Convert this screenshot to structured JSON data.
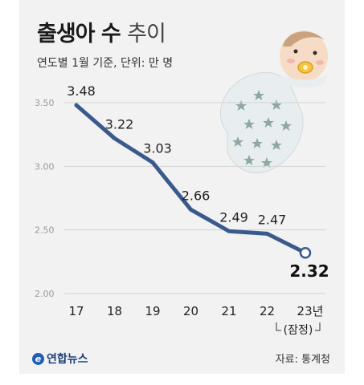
{
  "header": {
    "title_bold": "출생아 수",
    "title_light": "추이",
    "subtitle": "연도별 1월 기준, 단위: 만 명"
  },
  "footer": {
    "logo": "연합뉴스",
    "logo_mark": "e",
    "source": "자료: 통계청"
  },
  "colors": {
    "line": "#3b5a8c",
    "grid": "#d2d2d2",
    "background": "#f2f2f2"
  },
  "illustration": "swaddled-baby-with-pacifier",
  "chart_data": {
    "type": "line",
    "title": "출생아 수 추이",
    "categories": [
      "17",
      "18",
      "19",
      "20",
      "21",
      "22",
      "23년"
    ],
    "category_note": "(잠정)",
    "values": [
      3.48,
      3.22,
      3.03,
      2.66,
      2.49,
      2.47,
      2.32
    ],
    "data_labels": [
      "3.48",
      "3.22",
      "3.03",
      "2.66",
      "2.49",
      "2.47",
      "2.32"
    ],
    "y_ticks": [
      "3.50",
      "3.00",
      "2.50",
      "2.00"
    ],
    "ylim": [
      2.0,
      3.5
    ],
    "grid": true,
    "last_point_hollow": true
  }
}
